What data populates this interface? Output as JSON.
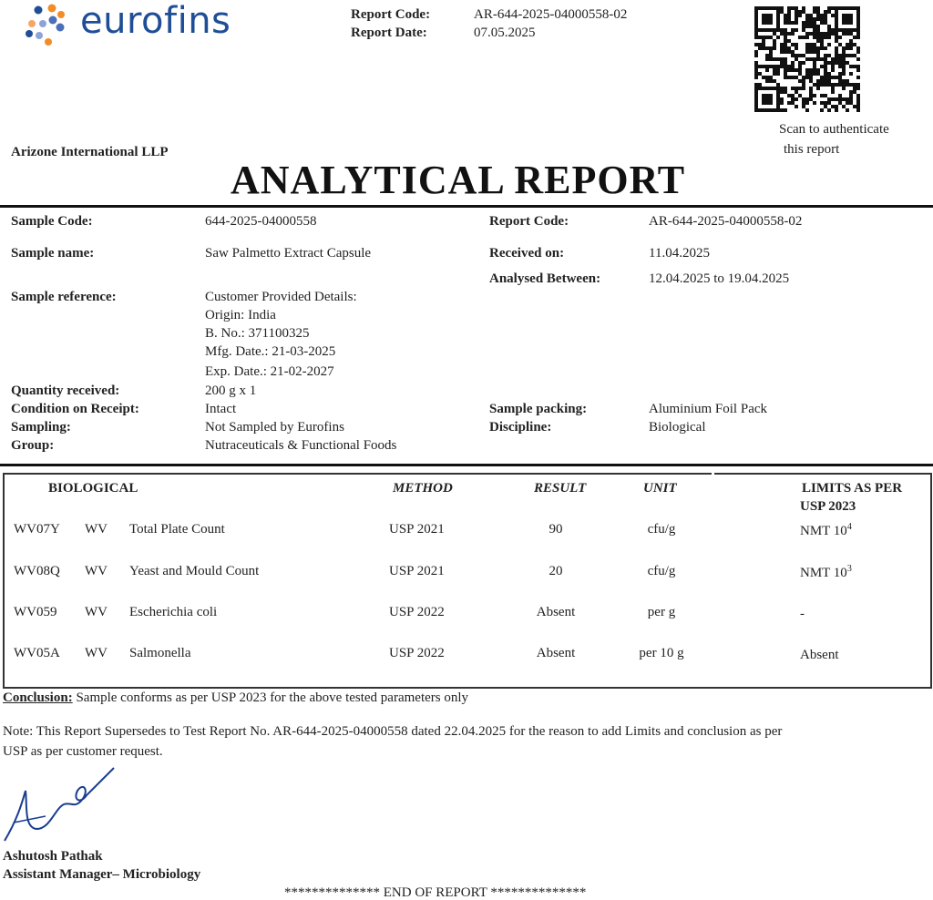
{
  "header": {
    "brand": "eurofins",
    "report_code_label": "Report Code:",
    "report_code": "AR-644-2025-04000558-02",
    "report_date_label": "Report Date:",
    "report_date": "07.05.2025",
    "qr_caption_1": "Scan to authenticate",
    "qr_caption_2": "this report",
    "customer": "Arizone International LLP",
    "title": "ANALYTICAL REPORT"
  },
  "details": {
    "sample_code_label": "Sample Code:",
    "sample_code": "644-2025-04000558",
    "sample_name_label": "Sample name:",
    "sample_name": "Saw Palmetto Extract Capsule",
    "sample_reference_label": "Sample reference:",
    "sample_reference": [
      "Customer Provided Details:",
      "Origin: India",
      "B. No.: 371100325",
      "Mfg. Date.: 21-03-2025",
      "Exp. Date.: 21-02-2027"
    ],
    "quantity_label": "Quantity received:",
    "quantity": "200 g x 1",
    "condition_label": "Condition on Receipt:",
    "condition": "Intact",
    "sampling_label": "Sampling:",
    "sampling": "Not Sampled by Eurofins",
    "group_label": "Group:",
    "group": "Nutraceuticals & Functional Foods",
    "report_code_label": "Report Code:",
    "report_code": "AR-644-2025-04000558-02",
    "received_label": "Received on:",
    "received": "11.04.2025",
    "analysed_label": "Analysed Between:",
    "analysed": "12.04.2025 to 19.04.2025",
    "packing_label": "Sample packing:",
    "packing": "Aluminium Foil Pack",
    "discipline_label": "Discipline:",
    "discipline": "Biological"
  },
  "table": {
    "headers": {
      "section": "BIOLOGICAL",
      "method": "METHOD",
      "result": "RESULT",
      "unit": "UNIT",
      "limits_1": "LIMITS AS PER",
      "limits_2": "USP 2023"
    },
    "rows": [
      {
        "code": "WV07Y",
        "type": "WV",
        "parameter": "Total Plate Count",
        "method": "USP 2021",
        "result": "90",
        "unit": "cfu/g",
        "limit": "NMT 10",
        "limit_exp": "4"
      },
      {
        "code": "WV08Q",
        "type": "WV",
        "parameter": "Yeast and Mould Count",
        "method": "USP 2021",
        "result": "20",
        "unit": "cfu/g",
        "limit": "NMT 10",
        "limit_exp": "3"
      },
      {
        "code": "WV059",
        "type": "WV",
        "parameter": "Escherichia coli",
        "method": "USP 2022",
        "result": "Absent",
        "unit": "per g",
        "limit": "-",
        "limit_exp": ""
      },
      {
        "code": "WV05A",
        "type": "WV",
        "parameter": "Salmonella",
        "method": "USP 2022",
        "result": "Absent",
        "unit": "per 10 g",
        "limit": "Absent",
        "limit_exp": ""
      }
    ]
  },
  "conclusion_label": "Conclusion:",
  "conclusion": "Sample conforms as per USP 2023 for the above tested parameters only",
  "note_1": "Note: This Report Supersedes to Test Report No. AR-644-2025-04000558 dated 22.04.2025 for the reason to add Limits and conclusion as per",
  "note_2": "USP as per customer request.",
  "signatory": {
    "name": "Ashutosh Pathak",
    "title": "Assistant Manager– Microbiology",
    "signature_text": "Ashutosh"
  },
  "footer": "************** END OF REPORT **************",
  "colors": {
    "brand_blue": "#1f4e96",
    "brand_orange": "#f28c28",
    "signature_blue": "#1a3d8f"
  }
}
